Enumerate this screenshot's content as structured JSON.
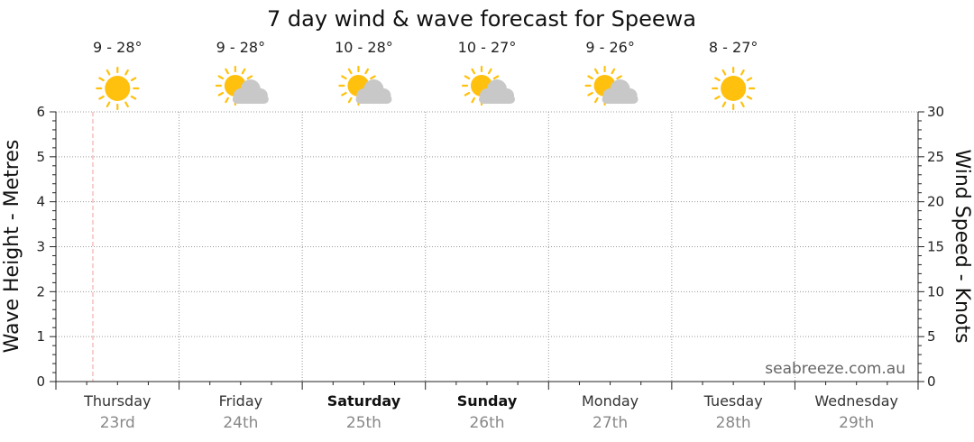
{
  "chart_data": {
    "type": "line",
    "title": "7 day wind & wave forecast for Speewa",
    "ylabel_left": "Wave Height - Metres",
    "ylabel_right": "Wind Speed - Knots",
    "ylim_left": [
      0,
      6
    ],
    "ylim_right": [
      0,
      30
    ],
    "yticks_left": [
      "0",
      "1",
      "2",
      "3",
      "4",
      "5",
      "6"
    ],
    "yticks_right": [
      "0",
      "5",
      "10",
      "15",
      "20",
      "25",
      "30"
    ],
    "grid": true,
    "current_time_marker_day": 0.3,
    "days": [
      {
        "name": "Thursday",
        "date": "23rd",
        "bold": false,
        "temp": "9 - 28°",
        "icon": "sun-icon"
      },
      {
        "name": "Friday",
        "date": "24th",
        "bold": false,
        "temp": "9 - 28°",
        "icon": "partly-cloudy-icon"
      },
      {
        "name": "Saturday",
        "date": "25th",
        "bold": true,
        "temp": "10 - 28°",
        "icon": "partly-cloudy-icon"
      },
      {
        "name": "Sunday",
        "date": "26th",
        "bold": true,
        "temp": "10 - 27°",
        "icon": "partly-cloudy-icon"
      },
      {
        "name": "Monday",
        "date": "27th",
        "bold": false,
        "temp": "9 - 26°",
        "icon": "partly-cloudy-icon"
      },
      {
        "name": "Tuesday",
        "date": "28th",
        "bold": false,
        "temp": "8 - 27°",
        "icon": "sun-icon"
      },
      {
        "name": "Wednesday",
        "date": "29th",
        "bold": false,
        "temp": "",
        "icon": ""
      }
    ],
    "series": [],
    "watermark": "seabreeze.com.au"
  },
  "colors": {
    "sun": "#FFC10E",
    "cloud": "#C8C8C8",
    "grid": "#9a9a9a",
    "now_marker": "#f0a0a0"
  }
}
